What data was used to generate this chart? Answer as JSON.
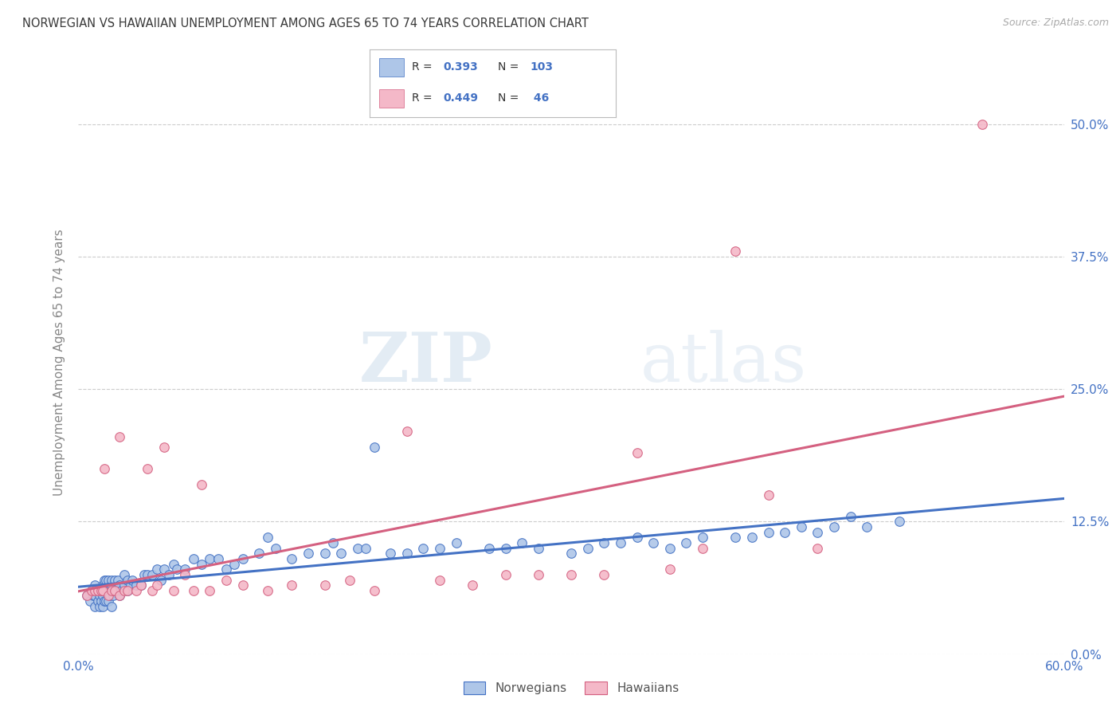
{
  "title": "NORWEGIAN VS HAWAIIAN UNEMPLOYMENT AMONG AGES 65 TO 74 YEARS CORRELATION CHART",
  "source": "Source: ZipAtlas.com",
  "xlim": [
    0.0,
    0.6
  ],
  "ylim": [
    0.0,
    0.55
  ],
  "ylabel_ticks": [
    "0.0%",
    "12.5%",
    "25.0%",
    "37.5%",
    "50.0%"
  ],
  "ylabel_vals": [
    0.0,
    0.125,
    0.25,
    0.375,
    0.5
  ],
  "xlabel_ticks_left": "0.0%",
  "xlabel_ticks_right": "60.0%",
  "norwegian_R": 0.393,
  "norwegian_N": 103,
  "hawaiian_R": 0.449,
  "hawaiian_N": 46,
  "norwegian_fill": "#aec6e8",
  "hawaiian_fill": "#f4b8c8",
  "norwegian_edge": "#4472c4",
  "hawaiian_edge": "#d46080",
  "norwegian_line": "#4472c4",
  "hawaiian_line": "#d46080",
  "ylabel": "Unemployment Among Ages 65 to 74 years",
  "watermark_zip": "ZIP",
  "watermark_atlas": "atlas",
  "background_color": "#ffffff",
  "grid_color": "#cccccc",
  "title_color": "#3a3a3a",
  "tick_label_color": "#4472c4",
  "ylabel_color": "#888888",
  "legend_label_color": "#555555",
  "norwegian_x": [
    0.005,
    0.007,
    0.008,
    0.009,
    0.01,
    0.01,
    0.01,
    0.012,
    0.012,
    0.013,
    0.013,
    0.014,
    0.014,
    0.015,
    0.015,
    0.015,
    0.015,
    0.016,
    0.016,
    0.016,
    0.017,
    0.017,
    0.017,
    0.018,
    0.018,
    0.018,
    0.019,
    0.02,
    0.02,
    0.02,
    0.02,
    0.021,
    0.022,
    0.022,
    0.023,
    0.024,
    0.025,
    0.025,
    0.026,
    0.028,
    0.028,
    0.03,
    0.03,
    0.032,
    0.033,
    0.035,
    0.038,
    0.04,
    0.042,
    0.045,
    0.048,
    0.05,
    0.052,
    0.055,
    0.058,
    0.06,
    0.065,
    0.07,
    0.075,
    0.08,
    0.085,
    0.09,
    0.095,
    0.1,
    0.11,
    0.115,
    0.12,
    0.13,
    0.14,
    0.15,
    0.155,
    0.16,
    0.17,
    0.175,
    0.18,
    0.19,
    0.2,
    0.21,
    0.22,
    0.23,
    0.25,
    0.26,
    0.27,
    0.28,
    0.3,
    0.31,
    0.32,
    0.33,
    0.34,
    0.35,
    0.36,
    0.37,
    0.38,
    0.4,
    0.41,
    0.42,
    0.43,
    0.44,
    0.45,
    0.46,
    0.47,
    0.48,
    0.5
  ],
  "norwegian_y": [
    0.055,
    0.05,
    0.06,
    0.055,
    0.045,
    0.055,
    0.065,
    0.05,
    0.06,
    0.045,
    0.055,
    0.05,
    0.06,
    0.045,
    0.055,
    0.06,
    0.065,
    0.05,
    0.06,
    0.07,
    0.05,
    0.06,
    0.07,
    0.05,
    0.06,
    0.07,
    0.055,
    0.045,
    0.06,
    0.065,
    0.07,
    0.055,
    0.06,
    0.07,
    0.06,
    0.07,
    0.055,
    0.065,
    0.06,
    0.065,
    0.075,
    0.06,
    0.07,
    0.065,
    0.07,
    0.065,
    0.065,
    0.075,
    0.075,
    0.075,
    0.08,
    0.07,
    0.08,
    0.075,
    0.085,
    0.08,
    0.08,
    0.09,
    0.085,
    0.09,
    0.09,
    0.08,
    0.085,
    0.09,
    0.095,
    0.11,
    0.1,
    0.09,
    0.095,
    0.095,
    0.105,
    0.095,
    0.1,
    0.1,
    0.195,
    0.095,
    0.095,
    0.1,
    0.1,
    0.105,
    0.1,
    0.1,
    0.105,
    0.1,
    0.095,
    0.1,
    0.105,
    0.105,
    0.11,
    0.105,
    0.1,
    0.105,
    0.11,
    0.11,
    0.11,
    0.115,
    0.115,
    0.12,
    0.115,
    0.12,
    0.13,
    0.12,
    0.125
  ],
  "hawaiian_x": [
    0.005,
    0.008,
    0.01,
    0.012,
    0.014,
    0.015,
    0.016,
    0.018,
    0.02,
    0.022,
    0.025,
    0.025,
    0.028,
    0.03,
    0.035,
    0.038,
    0.042,
    0.045,
    0.048,
    0.052,
    0.058,
    0.065,
    0.07,
    0.075,
    0.08,
    0.09,
    0.1,
    0.115,
    0.13,
    0.15,
    0.165,
    0.18,
    0.2,
    0.22,
    0.24,
    0.26,
    0.28,
    0.3,
    0.32,
    0.34,
    0.36,
    0.38,
    0.4,
    0.42,
    0.45,
    0.55
  ],
  "hawaiian_y": [
    0.055,
    0.06,
    0.06,
    0.06,
    0.06,
    0.06,
    0.175,
    0.055,
    0.06,
    0.06,
    0.055,
    0.205,
    0.06,
    0.06,
    0.06,
    0.065,
    0.175,
    0.06,
    0.065,
    0.195,
    0.06,
    0.075,
    0.06,
    0.16,
    0.06,
    0.07,
    0.065,
    0.06,
    0.065,
    0.065,
    0.07,
    0.06,
    0.21,
    0.07,
    0.065,
    0.075,
    0.075,
    0.075,
    0.075,
    0.19,
    0.08,
    0.1,
    0.38,
    0.15,
    0.1,
    0.5
  ]
}
